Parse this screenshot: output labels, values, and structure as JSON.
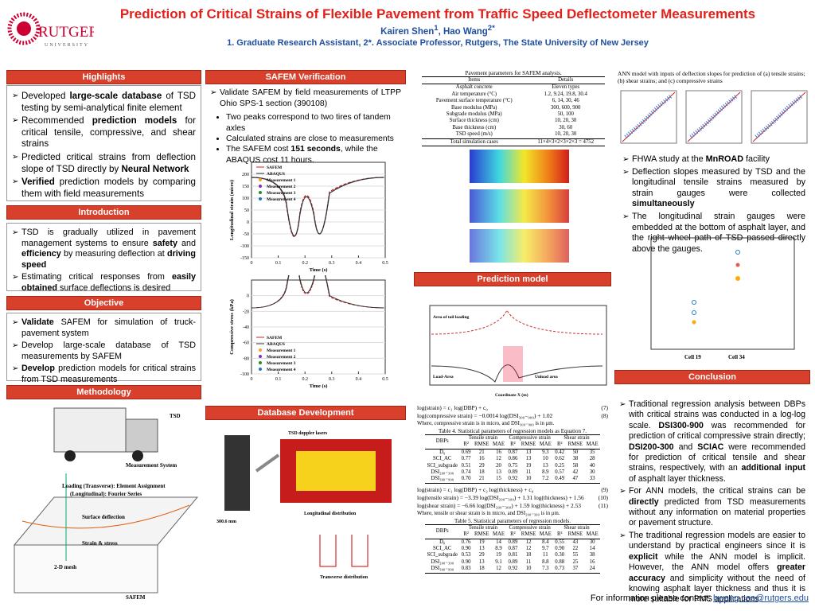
{
  "header": {
    "title": "Prediction of Critical Strains of Flexible Pavement from Traffic Speed Deflectometer Measurements",
    "authors": [
      "Kairen Shen",
      "1",
      ", Hao Wang",
      "2*"
    ],
    "affiliation": "1. Graduate Research Assistant, 2*. Associate Professor, Rutgers, The State University of New Jersey",
    "logo": "RUTGERS",
    "logo_sub": "UNIVERSITY"
  },
  "highlights": {
    "title": "Highlights",
    "bullets": [
      [
        "Developed ",
        "large-scale database",
        " of TSD testing by semi-analytical finite element"
      ],
      [
        "Recommended ",
        "prediction models",
        " for critical tensile, compressive, and shear strains"
      ],
      [
        "Predicted critical strains from deflection slope of TSD directly by ",
        "Neural Network"
      ],
      [
        "",
        "Verified",
        " prediction models by comparing them with field measurements"
      ]
    ]
  },
  "introduction": {
    "title": "Introduction",
    "bullets": [
      [
        "TSD is gradually utilized in pavement management systems to ensure ",
        "safety",
        " and ",
        "efficiency",
        " by measuring deflection at ",
        "driving speed"
      ],
      [
        "Estimating critical responses from ",
        "easily obtained",
        " surface deflections is desired"
      ]
    ]
  },
  "objective": {
    "title": "Objective",
    "bullets": [
      [
        "",
        "Validate",
        " SAFEM for simulation of truck-pavement system"
      ],
      [
        "Develop large-scale database of TSD measurements by SAFEM"
      ],
      [
        "",
        "Develop",
        " prediction models for critical strains from TSD measurements"
      ]
    ]
  },
  "methodology": {
    "title": "Methodology",
    "labels": [
      "TSD",
      "Measurement System",
      "Loading (Transverse): Element Assignment",
      "(Longitudinal): Fourier Series",
      "Surface deflection",
      "Strain & stress",
      "2-D mesh",
      "SAFEM"
    ]
  },
  "safem": {
    "title": "SAFEM Verification",
    "bullets": [
      [
        "Validate SAFEM by field measurements of LTPP Ohio SPS-1 section (390108)"
      ]
    ],
    "sub": [
      [
        "Two peaks correspond to two tires of tandem axles"
      ],
      [
        "Calculated strains are close to measurements"
      ],
      [
        "The SAFEM cost ",
        "151 seconds",
        ", while the ABAQUS cost 11 hours."
      ]
    ],
    "charts": [
      {
        "ylabel": "Longitudinal strain (micro)",
        "xlabel": "Time (s)",
        "legend": [
          "SAFEM",
          "ABAQUS",
          "Measurement 1",
          "Measurement 2",
          "Measurement 3",
          "Measurement 4"
        ],
        "ylim": [
          -150,
          250
        ],
        "yticks": [
          -150,
          -100,
          -50,
          0,
          50,
          100,
          150,
          200
        ],
        "xlim": [
          0,
          0.5
        ],
        "xticks": [
          0,
          0.1,
          0.2,
          0.3,
          0.4,
          0.5
        ]
      },
      {
        "ylabel": "Compressive stress (kPa)",
        "xlabel": "Time (s)",
        "legend": [
          "SAFEM",
          "ABAQUS",
          "Measurement 1",
          "Measurement 2",
          "Measurement 3",
          "Measurement 4"
        ],
        "ylim": [
          -100,
          20
        ],
        "yticks": [
          -100,
          -80,
          -60,
          -40,
          -20,
          0
        ],
        "xlim": [
          0,
          0.5
        ],
        "xticks": [
          0,
          0.1,
          0.2,
          0.3,
          0.4,
          0.5
        ]
      }
    ]
  },
  "database": {
    "title": "Database Development",
    "labels": [
      "TSD doppler lasers",
      "Longitudinal distribution",
      "Transverse distribution",
      "300.6 mm"
    ]
  },
  "params": {
    "caption": "Pavement parameters for SAFEM analysis.",
    "head": [
      "Items",
      "Details"
    ],
    "rows": [
      [
        "Asphalt concrete",
        "Eleven types"
      ],
      [
        "Air temperature (°C)",
        "1.2, 9.24, 19.8, 30.4"
      ],
      [
        "Pavement surface temperature (°C)",
        "6, 14, 30, 46"
      ],
      [
        "Base modulus (MPa)",
        "300, 600, 900"
      ],
      [
        "Subgrade modulus (MPa)",
        "50, 100"
      ],
      [
        "Surface thickness (cm)",
        "10, 20, 30"
      ],
      [
        "Base thickness (cm)",
        "30, 60"
      ],
      [
        "TSD speed (m/s)",
        "10, 20, 30"
      ],
      [
        "Total simulation cases",
        "11×4×3×2×3×2×3 = 4752"
      ]
    ]
  },
  "prediction": {
    "title": "Prediction model",
    "labels": [
      "Area of tail loading",
      "Load-Area",
      "Unload area",
      "Coordinate X (m)"
    ],
    "eq": [
      [
        "log(strain) = c₁ log(DBP) + c₀",
        "(7)"
      ],
      [
        "log(compressive strain) = −0.0014 log(DSI₃₀₀₋₉₀₀) + 1.02",
        "(8)"
      ]
    ],
    "note1": "Where, compressive strain is in micro, and DSI₃₀₀₋₉₀₀ is in μm.",
    "t4": {
      "caption": "Table 4. Statistical parameters of regression models as Equation 7.",
      "groups": [
        "DBPs",
        "Tensile strain",
        "Compressive strain",
        "Shear strain"
      ],
      "sub": [
        "R²",
        "RMSE",
        "MAE",
        "R²",
        "RMSE",
        "MAE",
        "R²",
        "RMSE",
        "MAE"
      ],
      "rows": [
        [
          "D₀",
          "0.69",
          "21",
          "16",
          "0.87",
          "13",
          "9.3",
          "0.42",
          "50",
          "35"
        ],
        [
          "SCI_AC",
          "0.77",
          "16",
          "12",
          "0.86",
          "13",
          "10",
          "0.62",
          "38",
          "28"
        ],
        [
          "SCI_subgrade",
          "0.51",
          "29",
          "20",
          "0.75",
          "19",
          "13",
          "0.25",
          "58",
          "40"
        ],
        [
          "DSI₂₀₀₋₃₀₀",
          "0.74",
          "18",
          "13",
          "0.89",
          "11",
          "8.9",
          "0.57",
          "42",
          "30"
        ],
        [
          "DSI₃₀₀₋₉₀₀",
          "0.70",
          "21",
          "15",
          "0.92",
          "10",
          "7.2",
          "0.49",
          "47",
          "33"
        ]
      ]
    },
    "eq2": [
      [
        "log(strain) = c₁ log(DBP) + c₂ log(thickness) + c₀",
        "(9)"
      ],
      [
        "log(tensile strain) = −3.39 log(DSI₂₀₀₋₃₀₀) + 1.31 log(thickness) + 1.56",
        "(10)"
      ],
      [
        "log(shear strain) = −6.66 log(DSI₂₀₀₋₃₀₀) + 1.59 log(thickness) + 2.53",
        "(11)"
      ]
    ],
    "note2": "Where, tensile or shear strain is in micro, and DSI₂₀₀₋₃₀₀ is in μm.",
    "t5": {
      "caption": "Table 5. Statistical parameters of regression models.",
      "groups": [
        "DBPs",
        "Tensile strain",
        "Compressive strain",
        "Shear strain"
      ],
      "sub": [
        "R²",
        "RMSE",
        "MAE",
        "R²",
        "RMSE",
        "MAE",
        "R²",
        "RMSE",
        "MAE"
      ],
      "rows": [
        [
          "D₀",
          "0.76",
          "19",
          "14",
          "0.89",
          "12",
          "8.4",
          "0.55",
          "43",
          "30"
        ],
        [
          "SCI_AC",
          "0.90",
          "13",
          "8.9",
          "0.87",
          "12",
          "9.7",
          "0.90",
          "22",
          "14"
        ],
        [
          "SCI_subgrade",
          "0.53",
          "29",
          "19",
          "0.81",
          "18",
          "11",
          "0.30",
          "55",
          "38"
        ],
        [
          "DSI₂₀₀₋₃₀₀",
          "0.90",
          "13",
          "9.1",
          "0.89",
          "11",
          "8.8",
          "0.88",
          "25",
          "16"
        ],
        [
          "DSI₃₀₀₋₉₀₀",
          "0.83",
          "18",
          "12",
          "0.92",
          "10",
          "7.3",
          "0.73",
          "37",
          "24"
        ]
      ]
    }
  },
  "ann": {
    "caption": "ANN model with inputs of deflection slopes for prediction of (a) tensile strains; (b) shear strains; and (c) compressive strains",
    "bullets": [
      [
        "FHWA study at the ",
        "MnROAD",
        " facility"
      ],
      [
        "Deflection slopes measured by TSD and the longitudinal tensile strains measured by strain gauges were collected ",
        "simultaneously"
      ],
      [
        "The longitudinal strain gauges were embedded at the bottom of asphalt layer, and the right wheel path of TSD passed directly above the gauges."
      ]
    ],
    "cells": [
      "Cell 19",
      "Cell 34"
    ]
  },
  "conclusion": {
    "title": "Conclusion",
    "bullets": [
      [
        "Traditional regression analysis between DBPs with critical strains was conducted in a log-log scale. ",
        "DSI300-900",
        " was recommended for prediction of critical compressive strain directly; ",
        "DSI200-300",
        " and ",
        "SCIAC",
        " were recommended for prediction of critical tensile and shear strains, respectively, with an ",
        "additional input",
        " of asphalt layer thickness."
      ],
      [
        "For ANN models, the critical strains can be ",
        "directly",
        " predicted from TSD measurements without any information on material properties or pavement structure."
      ],
      [
        "The traditional regression models are easier to understand by practical engineers since it is ",
        "explicit",
        " while the ANN model is implicit. However, the ANN model offers ",
        "greater accuracy",
        " and simplicity without the need of knowing asphalt layer thickness and thus it is more suitable for PMS applications."
      ]
    ]
  },
  "footer": {
    "text": "For information please contact: ",
    "email": "hwang.cee@rutgers.edu"
  }
}
